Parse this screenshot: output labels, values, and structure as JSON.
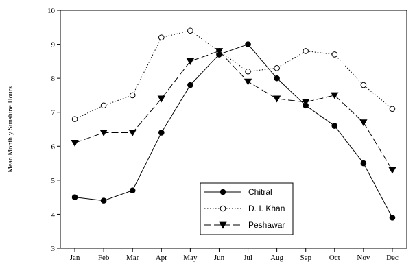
{
  "chart_data": {
    "type": "line",
    "title": "",
    "xlabel": "",
    "ylabel": "Mean Monthly Sunshine Hours",
    "categories": [
      "Jan",
      "Feb",
      "Mar",
      "Apr",
      "May",
      "Jun",
      "Jul",
      "Aug",
      "Sep",
      "Oct",
      "Nov",
      "Dec"
    ],
    "ylim": [
      3,
      10
    ],
    "yticks": [
      3,
      4,
      5,
      6,
      7,
      8,
      9,
      10
    ],
    "grid": false,
    "legend_position": "bottom-center",
    "series": [
      {
        "name": "Chitral",
        "values": [
          4.5,
          4.4,
          4.7,
          6.4,
          7.8,
          8.7,
          9.0,
          8.0,
          7.2,
          6.6,
          5.5,
          3.9
        ],
        "line_style": "solid",
        "marker": "filled-circle",
        "color": "#000000"
      },
      {
        "name": "D. I. Khan",
        "values": [
          6.8,
          7.2,
          7.5,
          9.2,
          9.4,
          8.8,
          8.2,
          8.3,
          8.8,
          8.7,
          7.8,
          7.1
        ],
        "line_style": "dotted",
        "marker": "open-circle",
        "color": "#000000"
      },
      {
        "name": "Peshawar",
        "values": [
          6.1,
          6.4,
          6.4,
          7.4,
          8.5,
          8.8,
          7.9,
          7.4,
          7.3,
          7.5,
          6.7,
          5.3
        ],
        "line_style": "dashed",
        "marker": "filled-triangle-down",
        "color": "#000000"
      }
    ]
  }
}
